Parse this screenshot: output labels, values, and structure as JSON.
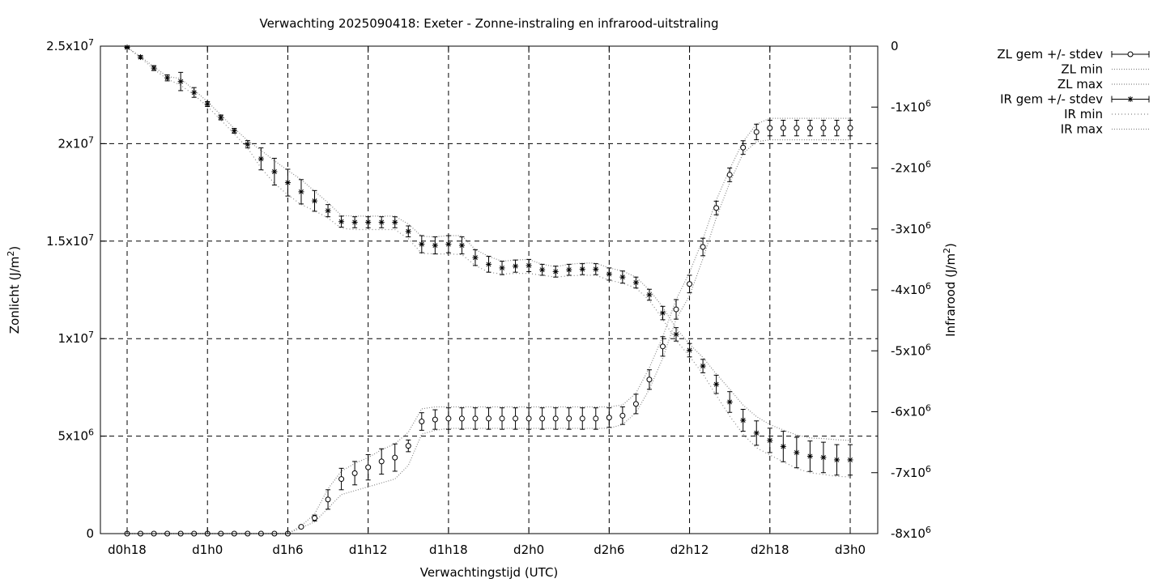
{
  "chart_data": {
    "type": "line",
    "title": "Verwachting 2025090418: Exeter - Zonne-instraling en infrarood-uitstraling",
    "xlabel": "Verwachtingstijd (UTC)",
    "ylabel_left": "Zonlicht (J/m²)",
    "ylabel_right": "Infrarood (J/m²)",
    "ylim_left": [
      0,
      25000000
    ],
    "ylim_right": [
      -8000000,
      0
    ],
    "xlim_hours": [
      0,
      56
    ],
    "grid": true,
    "legend_position": "outside-top-right",
    "x_ticks": [
      {
        "hour": 0,
        "label": "d0h18"
      },
      {
        "hour": 6,
        "label": "d1h0"
      },
      {
        "hour": 12,
        "label": "d1h6"
      },
      {
        "hour": 18,
        "label": "d1h12"
      },
      {
        "hour": 24,
        "label": "d1h18"
      },
      {
        "hour": 30,
        "label": "d2h0"
      },
      {
        "hour": 36,
        "label": "d2h6"
      },
      {
        "hour": 42,
        "label": "d2h12"
      },
      {
        "hour": 48,
        "label": "d2h18"
      },
      {
        "hour": 54,
        "label": "d3h0"
      }
    ],
    "y_ticks_left": [
      {
        "value": 0,
        "label": "0"
      },
      {
        "value": 5000000,
        "label": "5x10⁶"
      },
      {
        "value": 10000000,
        "label": "1x10⁷"
      },
      {
        "value": 15000000,
        "label": "1.5x10⁷"
      },
      {
        "value": 20000000,
        "label": "2x10⁷"
      },
      {
        "value": 25000000,
        "label": "2.5x10⁷"
      }
    ],
    "y_ticks_right": [
      {
        "value": 0,
        "label": "0"
      },
      {
        "value": -1000000,
        "label": "-1x10⁶"
      },
      {
        "value": -2000000,
        "label": "-2x10⁶"
      },
      {
        "value": -3000000,
        "label": "-3x10⁶"
      },
      {
        "value": -4000000,
        "label": "-4x10⁶"
      },
      {
        "value": -5000000,
        "label": "-5x10⁶"
      },
      {
        "value": -6000000,
        "label": "-6x10⁶"
      },
      {
        "value": -7000000,
        "label": "-7x10⁶"
      },
      {
        "value": -8000000,
        "label": "-8x10⁶"
      }
    ],
    "x_hours": [
      0,
      1,
      2,
      3,
      4,
      5,
      6,
      7,
      8,
      9,
      10,
      11,
      12,
      13,
      14,
      15,
      16,
      17,
      18,
      19,
      20,
      21,
      22,
      23,
      24,
      25,
      26,
      27,
      28,
      29,
      30,
      31,
      32,
      33,
      34,
      35,
      36,
      37,
      38,
      39,
      40,
      41,
      42,
      43,
      44,
      45,
      46,
      47,
      48,
      49,
      50,
      51,
      52,
      53,
      54
    ],
    "series": [
      {
        "name": "ZL gem +/- stdev",
        "axis": "left",
        "marker": "circle",
        "mean": [
          0,
          0,
          0,
          0,
          0,
          0,
          0,
          0,
          0,
          0,
          0,
          0,
          0,
          350000,
          800000,
          1750000,
          2800000,
          3100000,
          3400000,
          3700000,
          3900000,
          4500000,
          5750000,
          5850000,
          5900000,
          5900000,
          5900000,
          5900000,
          5900000,
          5900000,
          5900000,
          5900000,
          5900000,
          5900000,
          5900000,
          5900000,
          5950000,
          6050000,
          6650000,
          7900000,
          9600000,
          11500000,
          12800000,
          14700000,
          16700000,
          18400000,
          19800000,
          20600000,
          20800000,
          20800000,
          20800000,
          20800000,
          20800000,
          20800000,
          20800000
        ],
        "stdev": [
          0,
          0,
          0,
          0,
          0,
          0,
          0,
          0,
          0,
          0,
          0,
          0,
          0,
          50000,
          150000,
          500000,
          550000,
          600000,
          650000,
          650000,
          700000,
          300000,
          450000,
          500000,
          550000,
          550000,
          550000,
          550000,
          550000,
          550000,
          550000,
          550000,
          550000,
          550000,
          550000,
          550000,
          500000,
          450000,
          500000,
          500000,
          500000,
          500000,
          450000,
          450000,
          350000,
          350000,
          350000,
          400000,
          400000,
          400000,
          400000,
          400000,
          400000,
          400000,
          400000
        ]
      },
      {
        "name": "ZL min",
        "axis": "left",
        "values": [
          0,
          0,
          0,
          0,
          0,
          0,
          0,
          0,
          0,
          0,
          0,
          0,
          0,
          300000,
          600000,
          1300000,
          2000000,
          2200000,
          2400000,
          2600000,
          2800000,
          3500000,
          5100000,
          5300000,
          5400000,
          5400000,
          5400000,
          5400000,
          5400000,
          5400000,
          5400000,
          5400000,
          5400000,
          5400000,
          5400000,
          5400000,
          5400000,
          5600000,
          6200000,
          7400000,
          9000000,
          11000000,
          12200000,
          14100000,
          16200000,
          18000000,
          19500000,
          20100000,
          20200000,
          20200000,
          20200000,
          20200000,
          20200000,
          20200000,
          20200000
        ]
      },
      {
        "name": "ZL max",
        "axis": "left",
        "values": [
          0,
          0,
          0,
          0,
          0,
          0,
          0,
          0,
          0,
          0,
          0,
          0,
          0,
          400000,
          1000000,
          2300000,
          3200000,
          3600000,
          3900000,
          4300000,
          4600000,
          5200000,
          6400000,
          6500000,
          6500000,
          6500000,
          6500000,
          6500000,
          6500000,
          6500000,
          6500000,
          6500000,
          6500000,
          6500000,
          6500000,
          6500000,
          6500000,
          6600000,
          7200000,
          8500000,
          10100000,
          12000000,
          13400000,
          15100000,
          17100000,
          18700000,
          20100000,
          21000000,
          21300000,
          21300000,
          21300000,
          21300000,
          21300000,
          21300000,
          21300000
        ]
      },
      {
        "name": "IR gem +/- stdev",
        "axis": "right",
        "marker": "star",
        "mean": [
          -20000,
          -180000,
          -360000,
          -520000,
          -580000,
          -760000,
          -950000,
          -1170000,
          -1390000,
          -1610000,
          -1850000,
          -2060000,
          -2240000,
          -2390000,
          -2540000,
          -2700000,
          -2880000,
          -2890000,
          -2890000,
          -2890000,
          -2890000,
          -3040000,
          -3250000,
          -3270000,
          -3250000,
          -3270000,
          -3470000,
          -3580000,
          -3640000,
          -3610000,
          -3600000,
          -3670000,
          -3700000,
          -3670000,
          -3660000,
          -3660000,
          -3740000,
          -3790000,
          -3880000,
          -4080000,
          -4380000,
          -4730000,
          -4990000,
          -5250000,
          -5550000,
          -5840000,
          -6140000,
          -6350000,
          -6470000,
          -6570000,
          -6670000,
          -6730000,
          -6750000,
          -6790000,
          -6790000
        ],
        "stdev": [
          15000,
          25000,
          40000,
          50000,
          150000,
          80000,
          40000,
          40000,
          40000,
          60000,
          180000,
          220000,
          220000,
          200000,
          170000,
          100000,
          90000,
          90000,
          90000,
          90000,
          90000,
          90000,
          140000,
          140000,
          140000,
          140000,
          130000,
          130000,
          110000,
          100000,
          100000,
          90000,
          90000,
          90000,
          90000,
          90000,
          100000,
          100000,
          90000,
          90000,
          110000,
          110000,
          110000,
          110000,
          150000,
          170000,
          180000,
          200000,
          200000,
          250000,
          250000,
          250000,
          250000,
          250000,
          250000
        ]
      },
      {
        "name": "IR min",
        "axis": "right",
        "values": [
          -20000,
          -190000,
          -380000,
          -540000,
          -640000,
          -800000,
          -990000,
          -1210000,
          -1440000,
          -1670000,
          -2000000,
          -2250000,
          -2440000,
          -2600000,
          -2700000,
          -2820000,
          -2990000,
          -3010000,
          -3010000,
          -3010000,
          -3010000,
          -3160000,
          -3400000,
          -3410000,
          -3410000,
          -3420000,
          -3600000,
          -3710000,
          -3740000,
          -3730000,
          -3730000,
          -3760000,
          -3790000,
          -3770000,
          -3760000,
          -3760000,
          -3840000,
          -3890000,
          -3970000,
          -4170000,
          -4480000,
          -4830000,
          -5090000,
          -5380000,
          -5730000,
          -6070000,
          -6370000,
          -6590000,
          -6710000,
          -6820000,
          -6930000,
          -7000000,
          -7030000,
          -7060000,
          -7070000
        ]
      },
      {
        "name": "IR max",
        "axis": "right",
        "values": [
          -20000,
          -170000,
          -340000,
          -500000,
          -530000,
          -720000,
          -910000,
          -1130000,
          -1350000,
          -1550000,
          -1710000,
          -1880000,
          -2040000,
          -2190000,
          -2380000,
          -2570000,
          -2780000,
          -2790000,
          -2790000,
          -2790000,
          -2790000,
          -2920000,
          -3120000,
          -3130000,
          -3110000,
          -3110000,
          -3340000,
          -3450000,
          -3530000,
          -3510000,
          -3500000,
          -3580000,
          -3620000,
          -3580000,
          -3560000,
          -3560000,
          -3640000,
          -3690000,
          -3790000,
          -4000000,
          -4280000,
          -4630000,
          -4890000,
          -5110000,
          -5380000,
          -5630000,
          -5890000,
          -6080000,
          -6210000,
          -6300000,
          -6380000,
          -6430000,
          -6440000,
          -6460000,
          -6470000
        ]
      }
    ]
  }
}
